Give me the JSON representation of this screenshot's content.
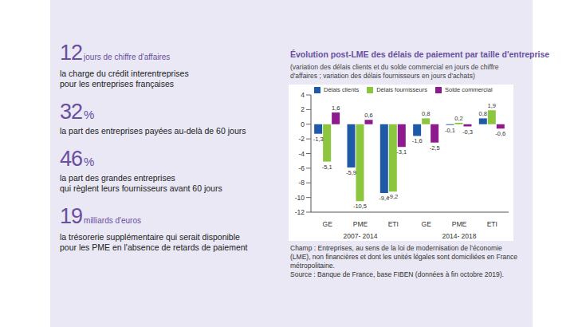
{
  "key_figures": [
    {
      "value": "12",
      "unit": "jours de chiffre d'affaires",
      "lines": [
        "la charge du crédit interentreprises",
        "pour les entreprises françaises"
      ]
    },
    {
      "value": "32",
      "unit": "%",
      "lines": [
        "la part des entreprises payées au-delà de 60 jours"
      ]
    },
    {
      "value": "46",
      "unit": "%",
      "lines": [
        "la part des grandes entreprises",
        "qui règlent leurs fournisseurs avant 60 jours"
      ]
    },
    {
      "value": "19",
      "unit": "milliards d'euros",
      "lines": [
        "la trésorerie supplémentaire qui serait disponible",
        "pour les PME en l'absence de retards de paiement"
      ]
    }
  ],
  "chart_data": {
    "type": "bar",
    "title": "Évolution post-LME des délais de paiement par taille d'entreprise",
    "subtitle": "(variation des délais clients et du solde commercial en jours de chiffre d'affaires ; variation des délais fournisseurs en jours d'achats)",
    "categories": [
      "GE",
      "PME",
      "ETI",
      "GE",
      "PME",
      "ETI"
    ],
    "category_groups": [
      {
        "label": "2007- 2014",
        "categories": [
          "GE",
          "PME",
          "ETI"
        ]
      },
      {
        "label": "2014- 2018",
        "categories": [
          "GE",
          "PME",
          "ETI"
        ]
      }
    ],
    "series": [
      {
        "name": "Délais clients",
        "color": "#1f5aa6",
        "values": [
          -1.3,
          -5.9,
          -9.4,
          -1.6,
          -0.1,
          0.8
        ],
        "value_labels": [
          "-1,3",
          "-5,9",
          "-9,4",
          "-1,6",
          "-0,1",
          "0,8"
        ]
      },
      {
        "name": "Délais fournisseurs",
        "color": "#8cc63f",
        "values": [
          -5.1,
          -10.5,
          -9.2,
          0.8,
          0.2,
          1.9
        ],
        "value_labels": [
          "-5,1",
          "-10,5",
          "-9,2",
          "0,8",
          "0,2",
          "1,9"
        ]
      },
      {
        "name": "Solde commercial",
        "color": "#8e1b8e",
        "values": [
          1.6,
          0.6,
          -3.1,
          -2.5,
          -0.3,
          -0.6
        ],
        "value_labels": [
          "1,6",
          "0,6",
          "-3,1",
          "-2,5",
          "-0,3",
          "-0,6"
        ]
      }
    ],
    "ylim": [
      -12,
      4
    ],
    "yticks": [
      -12,
      -10,
      -8,
      -6,
      -4,
      -2,
      0,
      2,
      4
    ],
    "grid": false,
    "legend": "top",
    "data_labels": true,
    "notes": [
      "Champ : Entreprises, au sens de la loi de modernisation de l'économie (LME), non financières et dont les unités légales sont domiciliées en France métropolitaine.",
      "Source : Banque de France, base FIBEN (données à fin octobre 2019)."
    ]
  }
}
